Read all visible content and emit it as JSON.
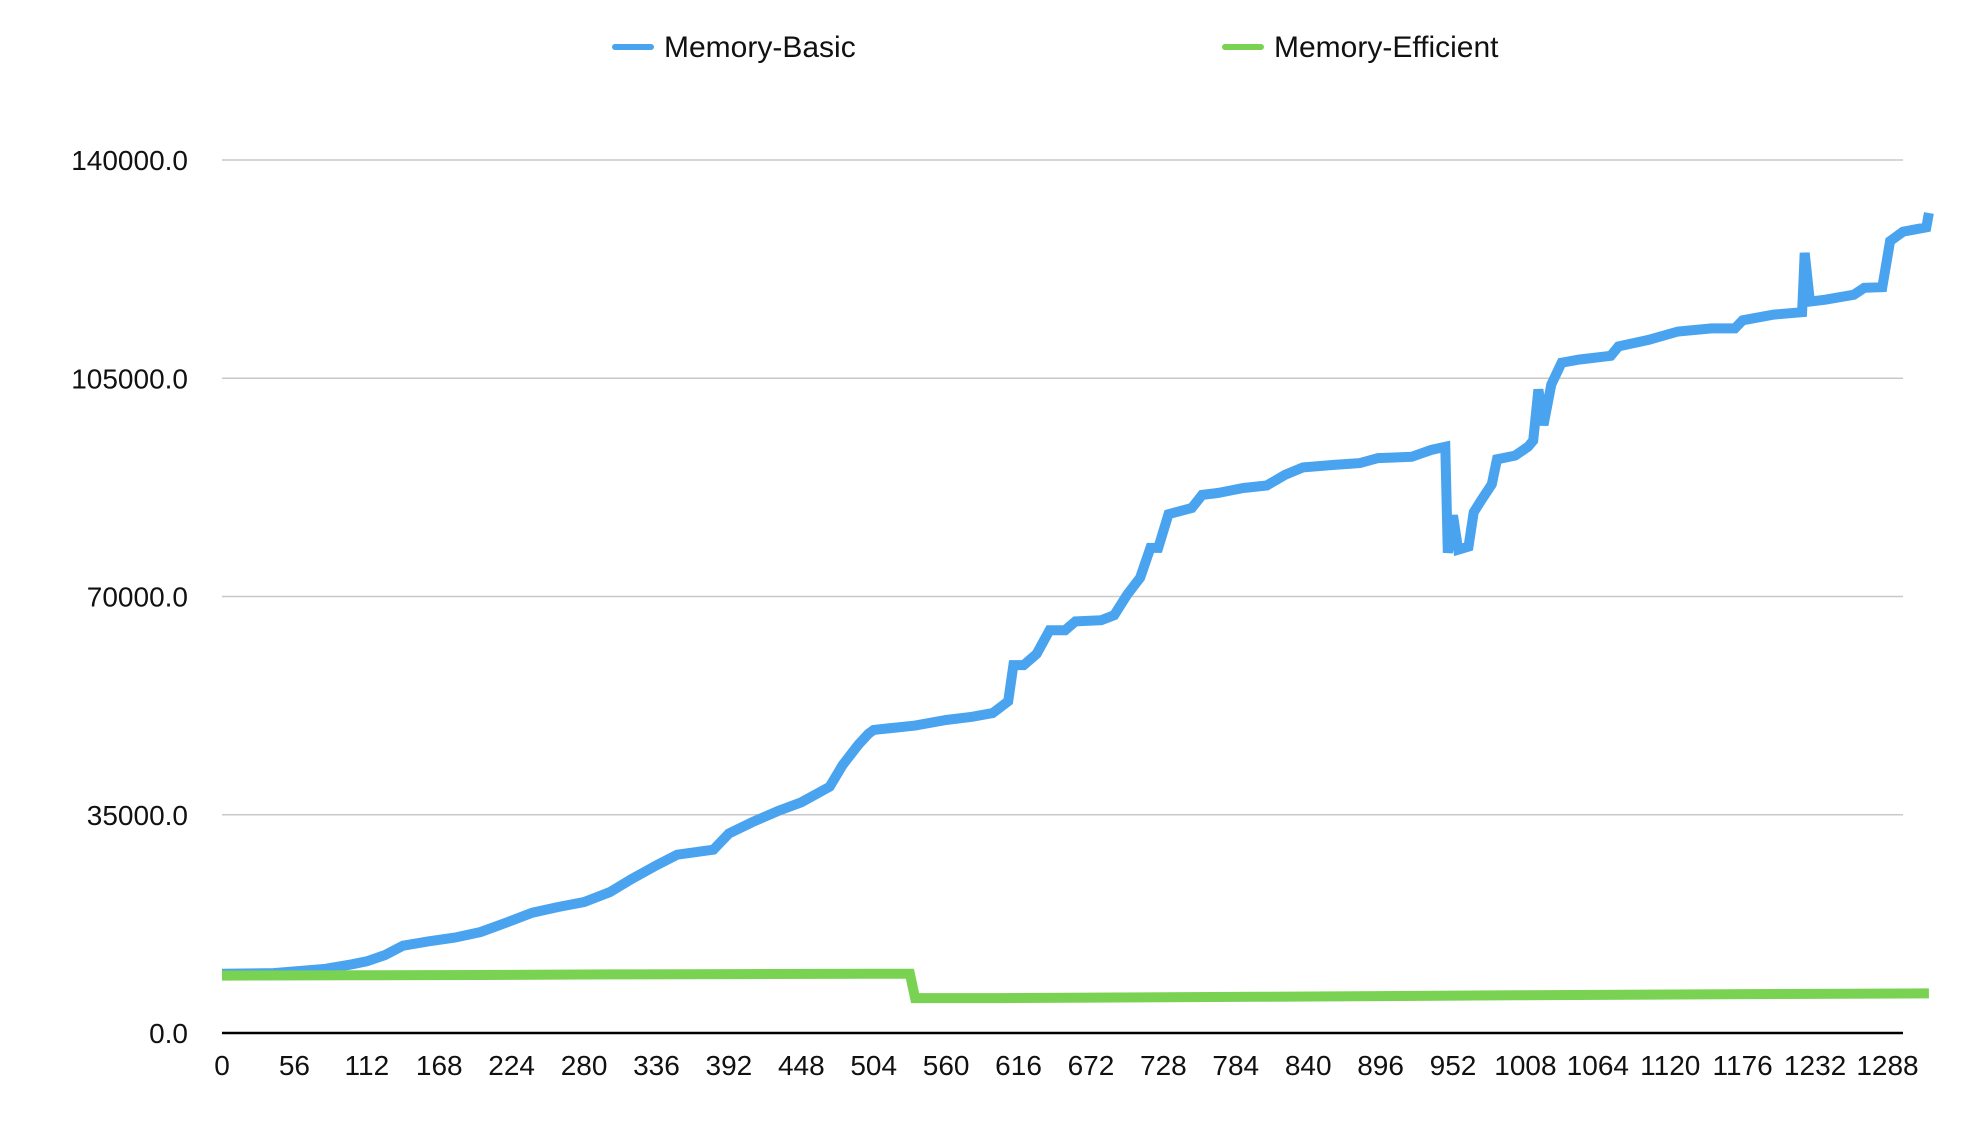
{
  "chart_data": {
    "type": "line",
    "title": "",
    "xlabel": "",
    "ylabel": "",
    "xlim": [
      0,
      1300
    ],
    "ylim": [
      0,
      140000
    ],
    "x_ticks": [
      "0",
      "56",
      "112",
      "168",
      "224",
      "280",
      "336",
      "392",
      "448",
      "504",
      "560",
      "616",
      "672",
      "728",
      "784",
      "840",
      "896",
      "952",
      "1008",
      "1064",
      "1120",
      "1176",
      "1232",
      "1288"
    ],
    "y_ticks": [
      "0.0",
      "35000.0",
      "70000.0",
      "105000.0",
      "140000.0"
    ],
    "grid": "horizontal",
    "legend_position": "top",
    "series": [
      {
        "name": "Memory-Basic",
        "color": "#4aa3ee",
        "points": [
          [
            0,
            9500
          ],
          [
            40,
            9600
          ],
          [
            80,
            10300
          ],
          [
            100,
            11000
          ],
          [
            112,
            11500
          ],
          [
            126,
            12500
          ],
          [
            140,
            14000
          ],
          [
            160,
            14700
          ],
          [
            180,
            15300
          ],
          [
            200,
            16200
          ],
          [
            220,
            17700
          ],
          [
            240,
            19300
          ],
          [
            260,
            20200
          ],
          [
            280,
            21000
          ],
          [
            300,
            22600
          ],
          [
            316,
            24600
          ],
          [
            336,
            26900
          ],
          [
            352,
            28600
          ],
          [
            380,
            29400
          ],
          [
            392,
            32000
          ],
          [
            410,
            33800
          ],
          [
            430,
            35600
          ],
          [
            448,
            37000
          ],
          [
            470,
            39500
          ],
          [
            480,
            43000
          ],
          [
            492,
            46200
          ],
          [
            500,
            48000
          ],
          [
            504,
            48600
          ],
          [
            536,
            49300
          ],
          [
            560,
            50200
          ],
          [
            580,
            50700
          ],
          [
            596,
            51300
          ],
          [
            608,
            53200
          ],
          [
            612,
            59000
          ],
          [
            620,
            59000
          ],
          [
            630,
            60800
          ],
          [
            640,
            64600
          ],
          [
            652,
            64600
          ],
          [
            660,
            66000
          ],
          [
            680,
            66200
          ],
          [
            690,
            67000
          ],
          [
            700,
            70300
          ],
          [
            710,
            73000
          ],
          [
            718,
            77800
          ],
          [
            724,
            77800
          ],
          [
            732,
            83200
          ],
          [
            750,
            84200
          ],
          [
            758,
            86300
          ],
          [
            770,
            86600
          ],
          [
            780,
            87000
          ],
          [
            790,
            87400
          ],
          [
            808,
            87800
          ],
          [
            822,
            89500
          ],
          [
            836,
            90700
          ],
          [
            860,
            91100
          ],
          [
            880,
            91400
          ],
          [
            894,
            92200
          ],
          [
            920,
            92400
          ],
          [
            935,
            93500
          ],
          [
            946,
            94000
          ],
          [
            948,
            77000
          ],
          [
            952,
            83000
          ],
          [
            956,
            77500
          ],
          [
            964,
            78000
          ],
          [
            968,
            83500
          ],
          [
            974,
            85500
          ],
          [
            982,
            88000
          ],
          [
            986,
            92000
          ],
          [
            1000,
            92600
          ],
          [
            1010,
            94000
          ],
          [
            1014,
            95000
          ],
          [
            1018,
            103200
          ],
          [
            1022,
            97500
          ],
          [
            1028,
            104000
          ],
          [
            1036,
            107500
          ],
          [
            1050,
            108000
          ],
          [
            1074,
            108600
          ],
          [
            1080,
            110100
          ],
          [
            1104,
            111200
          ],
          [
            1126,
            112500
          ],
          [
            1152,
            113000
          ],
          [
            1170,
            113000
          ],
          [
            1176,
            114300
          ],
          [
            1200,
            115200
          ],
          [
            1222,
            115600
          ],
          [
            1224,
            125100
          ],
          [
            1228,
            117300
          ],
          [
            1240,
            117600
          ],
          [
            1262,
            118400
          ],
          [
            1270,
            119500
          ],
          [
            1284,
            119600
          ],
          [
            1290,
            127000
          ],
          [
            1300,
            128500
          ],
          [
            1318,
            129200
          ],
          [
            1320,
            131500
          ]
        ]
      },
      {
        "name": "Memory-Efficient",
        "color": "#79d251",
        "points": [
          [
            0,
            9200
          ],
          [
            100,
            9250
          ],
          [
            200,
            9300
          ],
          [
            300,
            9400
          ],
          [
            400,
            9450
          ],
          [
            500,
            9500
          ],
          [
            532,
            9500
          ],
          [
            536,
            5600
          ],
          [
            600,
            5600
          ],
          [
            800,
            5800
          ],
          [
            1000,
            6050
          ],
          [
            1200,
            6250
          ],
          [
            1320,
            6350
          ]
        ]
      }
    ]
  }
}
